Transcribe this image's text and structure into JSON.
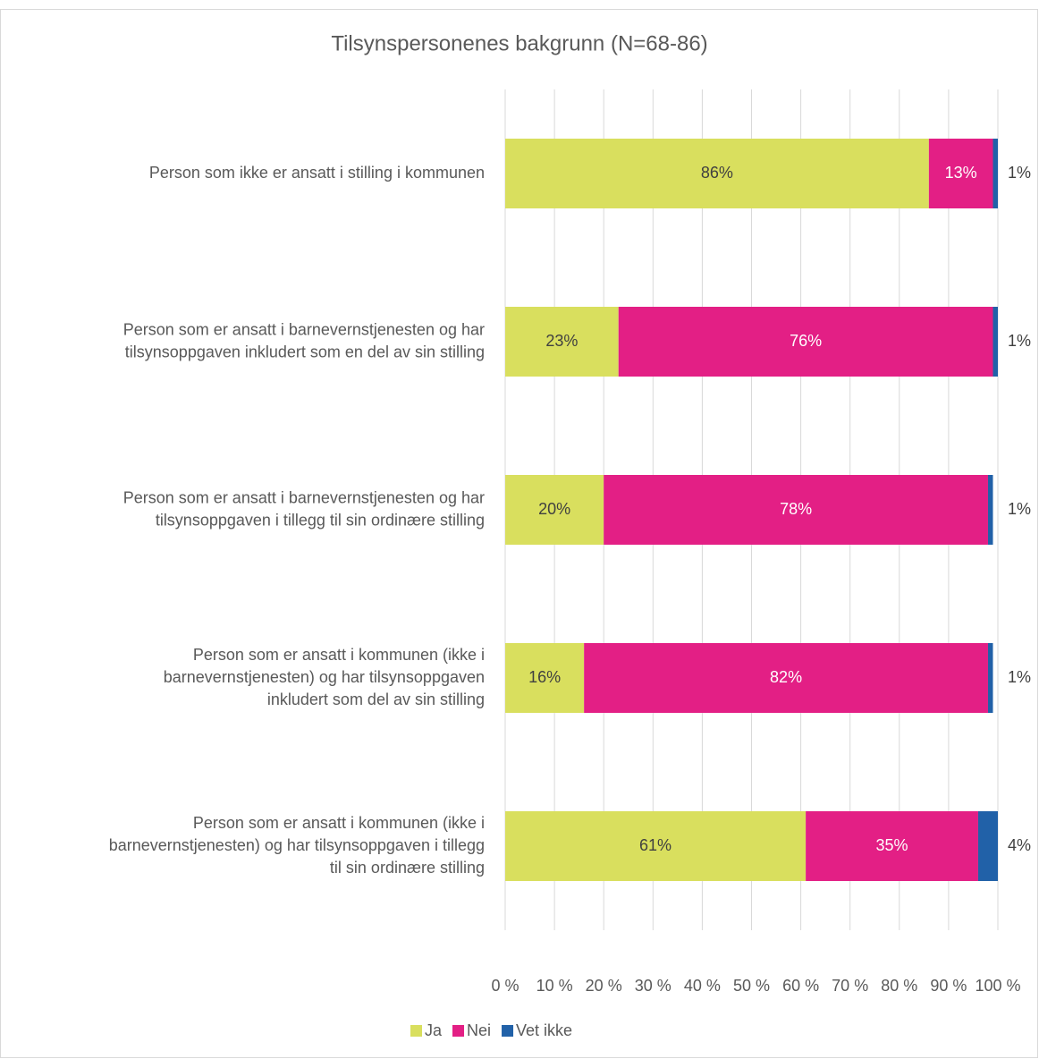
{
  "chart_data": {
    "type": "stacked-bar-horizontal",
    "title": "Tilsynspersonenes bakgrunn (N=68-86)",
    "categories": [
      [
        "Person som ikke er ansatt i stilling i kommunen"
      ],
      [
        "Person som er ansatt i barnevernstjenesten og har",
        "tilsynsoppgaven inkludert som en del av sin stilling"
      ],
      [
        "Person som er ansatt i barnevernstjenesten og har",
        "tilsynsoppgaven i tillegg til sin ordinære stilling"
      ],
      [
        "Person som er ansatt i kommunen (ikke i",
        "barnevernstjenesten) og har tilsynsoppgaven",
        "inkludert som del av sin stilling"
      ],
      [
        "Person som er ansatt i kommunen (ikke i",
        "barnevernstjenesten) og har tilsynsoppgaven i tillegg",
        "til sin ordinære stilling"
      ]
    ],
    "series": [
      {
        "name": "Ja",
        "color": "#d9df5e",
        "values": [
          86,
          23,
          20,
          16,
          61
        ],
        "value_labels": [
          "86%",
          "23%",
          "20%",
          "16%",
          "61%"
        ]
      },
      {
        "name": "Nei",
        "color": "#e31f85",
        "values": [
          13,
          76,
          78,
          82,
          35
        ],
        "value_labels": [
          "13%",
          "76%",
          "78%",
          "82%",
          "35%"
        ]
      },
      {
        "name": "Vet ikke",
        "color": "#2161a8",
        "values": [
          1,
          1,
          1,
          1,
          4
        ],
        "value_labels": [
          "1%",
          "1%",
          "1%",
          "1%",
          "4%"
        ]
      }
    ],
    "xlim": [
      0,
      100
    ],
    "xticks": [
      {
        "value": 0,
        "label": "0 %"
      },
      {
        "value": 10,
        "label": "10 %"
      },
      {
        "value": 20,
        "label": "20 %"
      },
      {
        "value": 30,
        "label": "30 %"
      },
      {
        "value": 40,
        "label": "40 %"
      },
      {
        "value": 50,
        "label": "50 %"
      },
      {
        "value": 60,
        "label": "60 %"
      },
      {
        "value": 70,
        "label": "70 %"
      },
      {
        "value": 80,
        "label": "80 %"
      },
      {
        "value": 90,
        "label": "90 %"
      },
      {
        "value": 100,
        "label": "100 %"
      }
    ],
    "grid": true,
    "legend": "bottom"
  }
}
